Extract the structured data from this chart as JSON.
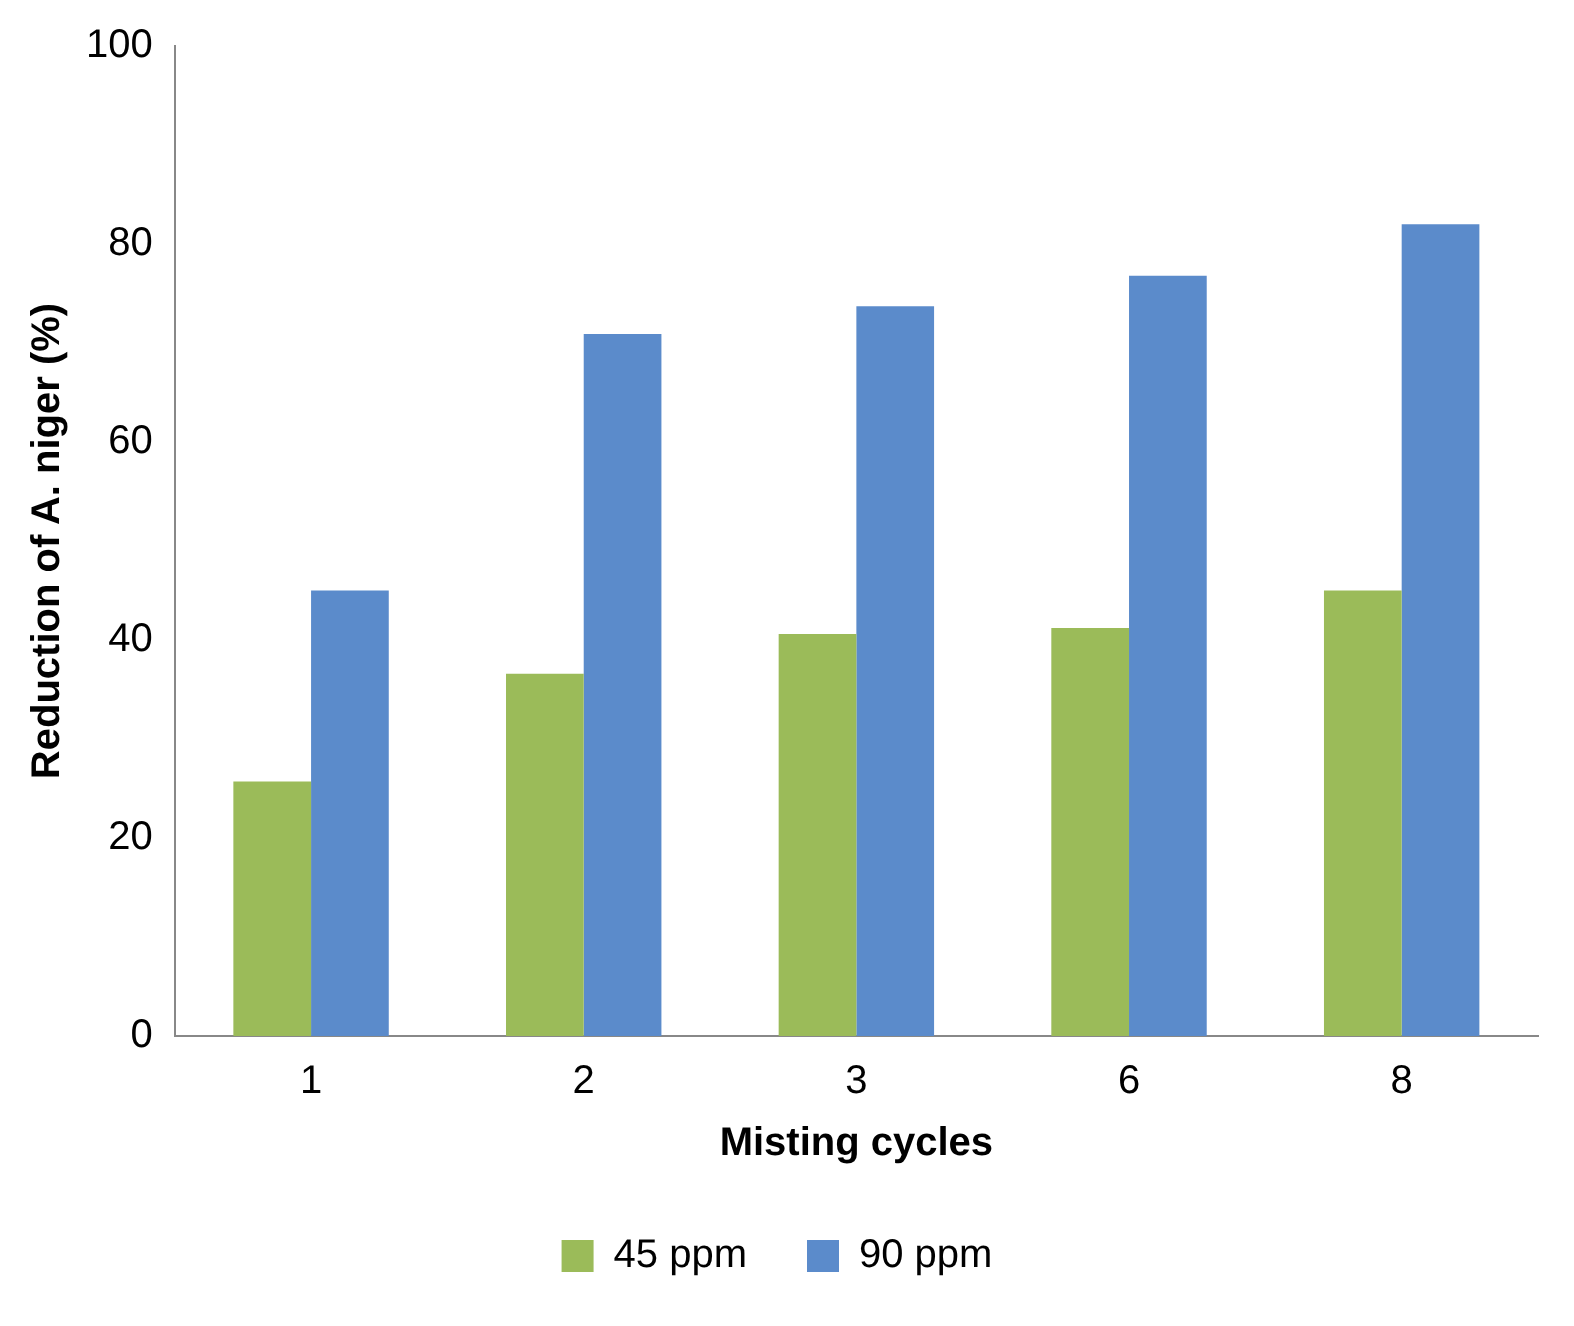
{
  "chart_data": {
    "type": "bar",
    "xlabel": "Misting cycles",
    "ylabel": "Reduction of A. niger (%)",
    "categories": [
      "1",
      "2",
      "3",
      "6",
      "8"
    ],
    "series": [
      {
        "name": "45 ppm",
        "color": "#9bbb59",
        "values": [
          25.7,
          36.6,
          40.6,
          41.2,
          45.0
        ]
      },
      {
        "name": "90 ppm",
        "color": "#5b8bcb",
        "values": [
          45.0,
          70.9,
          73.7,
          76.8,
          82.0
        ]
      }
    ],
    "ylim": [
      0,
      100
    ],
    "yticks": [
      0,
      20,
      40,
      60,
      80,
      100
    ],
    "grid": false,
    "legend": "bottom"
  }
}
